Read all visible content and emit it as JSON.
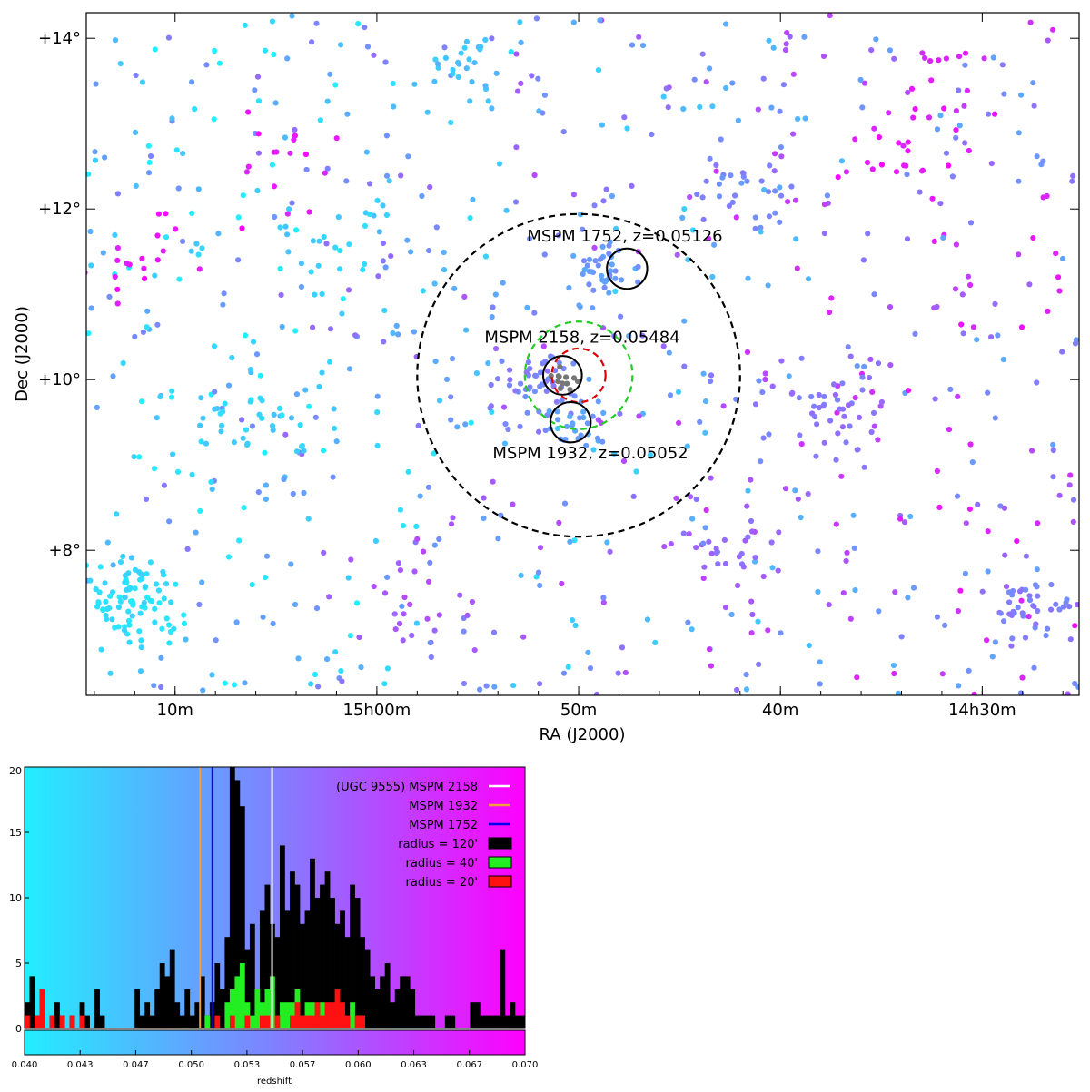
{
  "chart_data": [
    {
      "type": "scatter",
      "xlabel": "RA (J2000)",
      "ylabel": "Dec (J2000)",
      "xticks": [
        {
          "label": "10m",
          "ra_deg": 227.5
        },
        {
          "label": "15h00m",
          "ra_deg": 225.0
        },
        {
          "label": "50m",
          "ra_deg": 222.5
        },
        {
          "label": "40m",
          "ra_deg": 220.0
        },
        {
          "label": "14h30m",
          "ra_deg": 217.5
        }
      ],
      "yticks": [
        {
          "label": "+8°",
          "dec": 8
        },
        {
          "label": "+10°",
          "dec": 10
        },
        {
          "label": "+12°",
          "dec": 12
        },
        {
          "label": "+14°",
          "dec": 14
        }
      ],
      "xlim_ra_deg": [
        228.6,
        216.3
      ],
      "ylim_dec": [
        6.3,
        14.3
      ],
      "color_scale": {
        "vmin": 0.04,
        "vmax": 0.07,
        "low_color": "#22eeff",
        "mid_color": "#8080ff",
        "high_color": "#ff00ff"
      },
      "clumps": [
        {
          "ra": 228.0,
          "dec": 7.4,
          "n": 90,
          "sigma": 0.45,
          "z": 0.042
        },
        {
          "ra": 223.0,
          "dec": 10.0,
          "n": 55,
          "sigma": 0.35,
          "z": 0.0545
        },
        {
          "ra": 222.2,
          "dec": 11.2,
          "n": 35,
          "sigma": 0.3,
          "z": 0.0515
        },
        {
          "ra": 222.5,
          "dec": 9.5,
          "n": 25,
          "sigma": 0.25,
          "z": 0.0505
        },
        {
          "ra": 216.9,
          "dec": 7.3,
          "n": 40,
          "sigma": 0.35,
          "z": 0.055
        },
        {
          "ra": 219.4,
          "dec": 9.7,
          "n": 45,
          "sigma": 0.5,
          "z": 0.056
        },
        {
          "ra": 220.5,
          "dec": 12.3,
          "n": 30,
          "sigma": 0.4,
          "z": 0.054
        },
        {
          "ra": 226.5,
          "dec": 9.5,
          "n": 35,
          "sigma": 0.6,
          "z": 0.044
        },
        {
          "ra": 225.6,
          "dec": 11.4,
          "n": 20,
          "sigma": 0.4,
          "z": 0.044
        },
        {
          "ra": 223.9,
          "dec": 13.6,
          "n": 25,
          "sigma": 0.4,
          "z": 0.046
        },
        {
          "ra": 228.0,
          "dec": 11.5,
          "n": 20,
          "sigma": 0.5,
          "z": 0.068
        },
        {
          "ra": 226.2,
          "dec": 12.6,
          "n": 15,
          "sigma": 0.5,
          "z": 0.067
        },
        {
          "ra": 218.6,
          "dec": 12.5,
          "n": 20,
          "sigma": 0.5,
          "z": 0.067
        },
        {
          "ra": 218.0,
          "dec": 13.5,
          "n": 15,
          "sigma": 0.5,
          "z": 0.066
        },
        {
          "ra": 220.6,
          "dec": 8.0,
          "n": 30,
          "sigma": 0.5,
          "z": 0.058
        },
        {
          "ra": 224.6,
          "dec": 7.5,
          "n": 25,
          "sigma": 0.6,
          "z": 0.06
        }
      ],
      "field_points": 750,
      "regions": [
        {
          "name": "radius = 120'",
          "ra": 222.5,
          "dec": 10.05,
          "radius_deg": 2.0,
          "color": "#000000",
          "dashed": true
        },
        {
          "name": "radius = 40'",
          "ra": 222.5,
          "dec": 10.05,
          "radius_deg": 0.667,
          "color": "#22cc22",
          "dashed": true
        },
        {
          "name": "radius = 20'",
          "ra": 222.5,
          "dec": 10.05,
          "radius_deg": 0.333,
          "color": "#dd0000",
          "dashed": true
        }
      ],
      "groups": [
        {
          "label": "MSPM 1752, z=0.05126",
          "ra": 221.9,
          "dec": 11.3,
          "radius_deg": 0.25
        },
        {
          "label": "MSPM 2158, z=0.05484",
          "ra": 222.7,
          "dec": 10.05,
          "radius_deg": 0.24
        },
        {
          "label": "MSPM 1932, z=0.05052",
          "ra": 222.6,
          "dec": 9.5,
          "radius_deg": 0.25
        }
      ]
    },
    {
      "type": "bar",
      "xlabel": "redshift",
      "ylabel": "",
      "xlim": [
        0.04,
        0.07
      ],
      "ylim": [
        0,
        20
      ],
      "yticks": [
        0,
        5,
        10,
        15,
        20
      ],
      "colorbar_ticks": [
        "0.040",
        "0.043",
        "0.047",
        "0.050",
        "0.053",
        "0.057",
        "0.060",
        "0.063",
        "0.067",
        "0.070"
      ],
      "bin_width": 0.0003,
      "series": [
        {
          "name": "radius = 120'",
          "color": "#000000",
          "values": [
            2,
            4,
            1,
            3,
            0,
            1,
            2,
            1,
            0,
            1,
            0,
            2,
            1,
            0,
            3,
            1,
            0,
            0,
            0,
            0,
            0,
            0,
            3,
            1,
            2,
            1,
            3,
            5,
            4,
            6,
            2,
            1,
            3,
            1,
            2,
            4,
            1,
            2,
            5,
            3,
            7,
            20,
            19,
            17,
            6,
            8,
            3,
            9,
            11,
            8,
            7,
            14,
            9,
            12,
            11,
            8,
            9,
            13,
            10,
            11,
            12,
            10,
            8,
            9,
            7,
            11,
            10,
            7,
            6,
            4,
            3,
            4,
            5,
            2,
            3,
            4,
            4,
            3,
            1,
            1,
            1,
            1,
            0,
            0,
            1,
            1,
            0,
            0,
            0,
            2,
            2,
            1,
            1,
            1,
            1,
            6,
            1,
            2,
            1,
            1,
            2,
            4,
            3,
            2,
            5,
            2,
            3,
            1,
            2,
            4,
            2,
            5,
            1,
            2,
            2,
            1,
            1,
            2,
            2,
            2,
            1,
            2,
            0,
            0,
            3,
            4,
            5,
            2,
            4,
            3,
            6,
            2,
            4,
            2,
            3,
            4,
            2,
            3,
            4,
            2,
            1,
            1,
            2,
            2,
            1,
            1,
            1,
            1,
            1,
            0,
            1,
            0,
            1,
            0,
            0,
            0,
            0,
            0,
            0,
            0,
            0,
            0,
            2,
            1,
            0,
            0,
            0,
            0,
            0,
            0,
            0,
            0,
            0,
            0,
            0,
            0,
            0,
            1,
            0,
            0,
            0,
            0,
            0,
            0,
            0,
            0,
            0,
            0,
            0,
            0,
            0,
            0,
            0,
            0,
            0,
            0,
            0,
            0,
            2
          ]
        },
        {
          "name": "radius = 40'",
          "color": "#22ee22",
          "values": [
            0,
            0,
            0,
            0,
            0,
            0,
            0,
            0,
            0,
            0,
            0,
            0,
            0,
            0,
            0,
            0,
            0,
            0,
            0,
            0,
            0,
            0,
            0,
            0,
            0,
            0,
            0,
            0,
            0,
            0,
            0,
            0,
            0,
            0,
            0,
            0,
            1,
            0,
            0,
            0,
            2,
            3,
            4,
            5,
            2,
            1,
            3,
            2,
            3,
            4,
            1,
            2,
            2,
            2,
            3,
            1,
            2,
            2,
            1,
            2,
            1,
            1,
            0,
            1,
            0,
            2,
            1,
            1,
            0,
            0,
            0,
            0,
            0,
            0,
            0,
            0,
            0,
            0,
            0,
            0,
            0,
            0,
            0,
            0,
            0,
            0,
            0,
            0,
            0,
            0,
            0,
            0,
            0,
            0,
            0,
            0,
            0,
            0,
            0,
            0,
            0,
            0,
            0,
            0,
            0,
            0,
            0,
            0,
            0,
            0,
            0,
            0,
            0,
            0,
            0,
            0,
            0,
            0,
            0,
            0,
            0,
            0,
            0,
            0,
            0,
            0,
            0,
            0,
            0,
            0,
            0,
            0,
            0,
            0,
            0,
            0,
            0,
            0,
            0,
            0,
            0,
            0,
            0,
            0,
            0,
            0,
            0,
            0,
            0,
            0,
            0,
            0,
            0,
            0,
            0,
            0,
            0,
            0,
            0,
            0,
            0,
            0,
            0,
            0,
            0,
            0,
            0,
            0,
            0,
            0,
            0,
            0,
            0,
            0,
            0,
            0,
            0,
            0,
            0,
            0,
            0,
            0,
            0,
            0,
            0,
            0,
            0,
            0,
            0,
            0,
            0,
            0,
            0,
            0,
            0,
            0,
            0,
            0,
            0,
            0,
            0
          ]
        },
        {
          "name": "radius = 20'",
          "color": "#ff1111",
          "values": [
            1,
            0,
            1,
            3,
            0,
            1,
            0,
            1,
            0,
            1,
            0,
            1,
            0,
            0,
            0,
            0,
            0,
            0,
            0,
            0,
            0,
            0,
            0,
            0,
            0,
            0,
            0,
            0,
            0,
            0,
            0,
            0,
            0,
            0,
            0,
            0,
            0,
            0,
            1,
            0,
            0,
            1,
            0,
            0,
            1,
            0,
            0,
            1,
            1,
            0,
            1,
            0,
            0,
            1,
            2,
            1,
            1,
            1,
            2,
            1,
            2,
            2,
            3,
            2,
            1,
            0,
            1,
            1,
            0,
            0,
            0,
            0,
            0,
            0,
            0,
            0,
            0,
            0,
            0,
            0,
            0,
            0,
            0,
            0,
            0,
            0,
            0,
            0,
            0,
            0,
            0,
            0,
            0,
            0,
            0,
            0,
            0,
            0,
            0,
            0,
            0,
            0,
            0,
            0,
            0,
            0,
            0,
            0,
            0,
            0,
            0,
            0,
            0,
            0,
            0,
            0,
            0,
            0,
            0,
            0,
            0,
            0,
            0,
            0,
            0,
            0,
            0,
            0,
            0,
            0,
            0,
            0,
            0,
            0,
            0,
            0,
            0,
            0,
            0,
            0,
            0,
            0,
            0,
            0,
            0,
            0,
            0,
            0,
            0,
            0,
            0,
            0,
            0,
            0,
            0,
            0,
            0,
            0,
            0,
            0,
            0,
            0,
            0,
            0,
            0,
            0,
            0,
            0,
            0,
            0,
            0,
            0,
            0,
            0,
            0,
            0,
            0,
            0,
            0,
            0,
            0,
            0,
            0,
            0,
            0,
            0,
            0,
            0,
            0,
            0,
            0,
            0,
            0,
            0,
            0,
            0,
            0,
            0,
            0,
            0,
            0,
            0,
            0,
            0
          ]
        }
      ],
      "vlines": [
        {
          "name": "(UGC 9555) MSPM 2158",
          "z": 0.05484,
          "color": "#ffffff"
        },
        {
          "name": "MSPM 1932",
          "z": 0.05052,
          "color": "#f0a040"
        },
        {
          "name": "MSPM 1752",
          "z": 0.05126,
          "color": "#0000ee"
        }
      ],
      "legend_position": "top-right"
    }
  ]
}
